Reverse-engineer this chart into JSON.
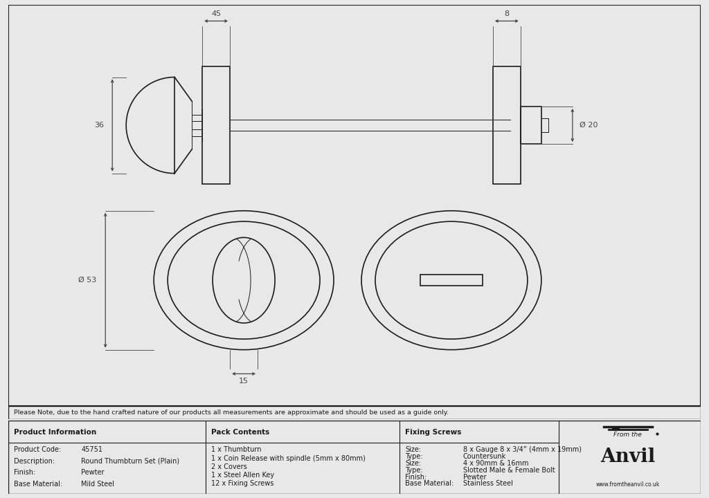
{
  "bg_color": "#e8e8e8",
  "drawing_bg": "#ffffff",
  "line_color": "#1a1a1a",
  "dim_color": "#444444",
  "note_text": "Please Note, due to the hand crafted nature of our products all measurements are approximate and should be used as a guide only.",
  "product_info": [
    [
      "Product Code:",
      "45751"
    ],
    [
      "Description:",
      "Round Thumbturn Set (Plain)"
    ],
    [
      "Finish:",
      "Pewter"
    ],
    [
      "Base Material:",
      "Mild Steel"
    ]
  ],
  "pack_contents": [
    "1 x Thumbturn",
    "1 x Coin Release with spindle (5mm x 80mm)",
    "2 x Covers",
    "1 x Steel Allen Key",
    "12 x Fixing Screws"
  ],
  "fixing_screws": [
    [
      "Size:",
      "8 x Gauge 8 x 3/4” (4mm x 19mm)"
    ],
    [
      "Type:",
      "Countersunk"
    ],
    [
      "Size:",
      "4 x 90mm & 16mm"
    ],
    [
      "Type:",
      "Slotted Male & Female Bolt"
    ],
    [
      "Finish:",
      "Pewter"
    ],
    [
      "Base Material:",
      "Stainless Steel"
    ]
  ]
}
